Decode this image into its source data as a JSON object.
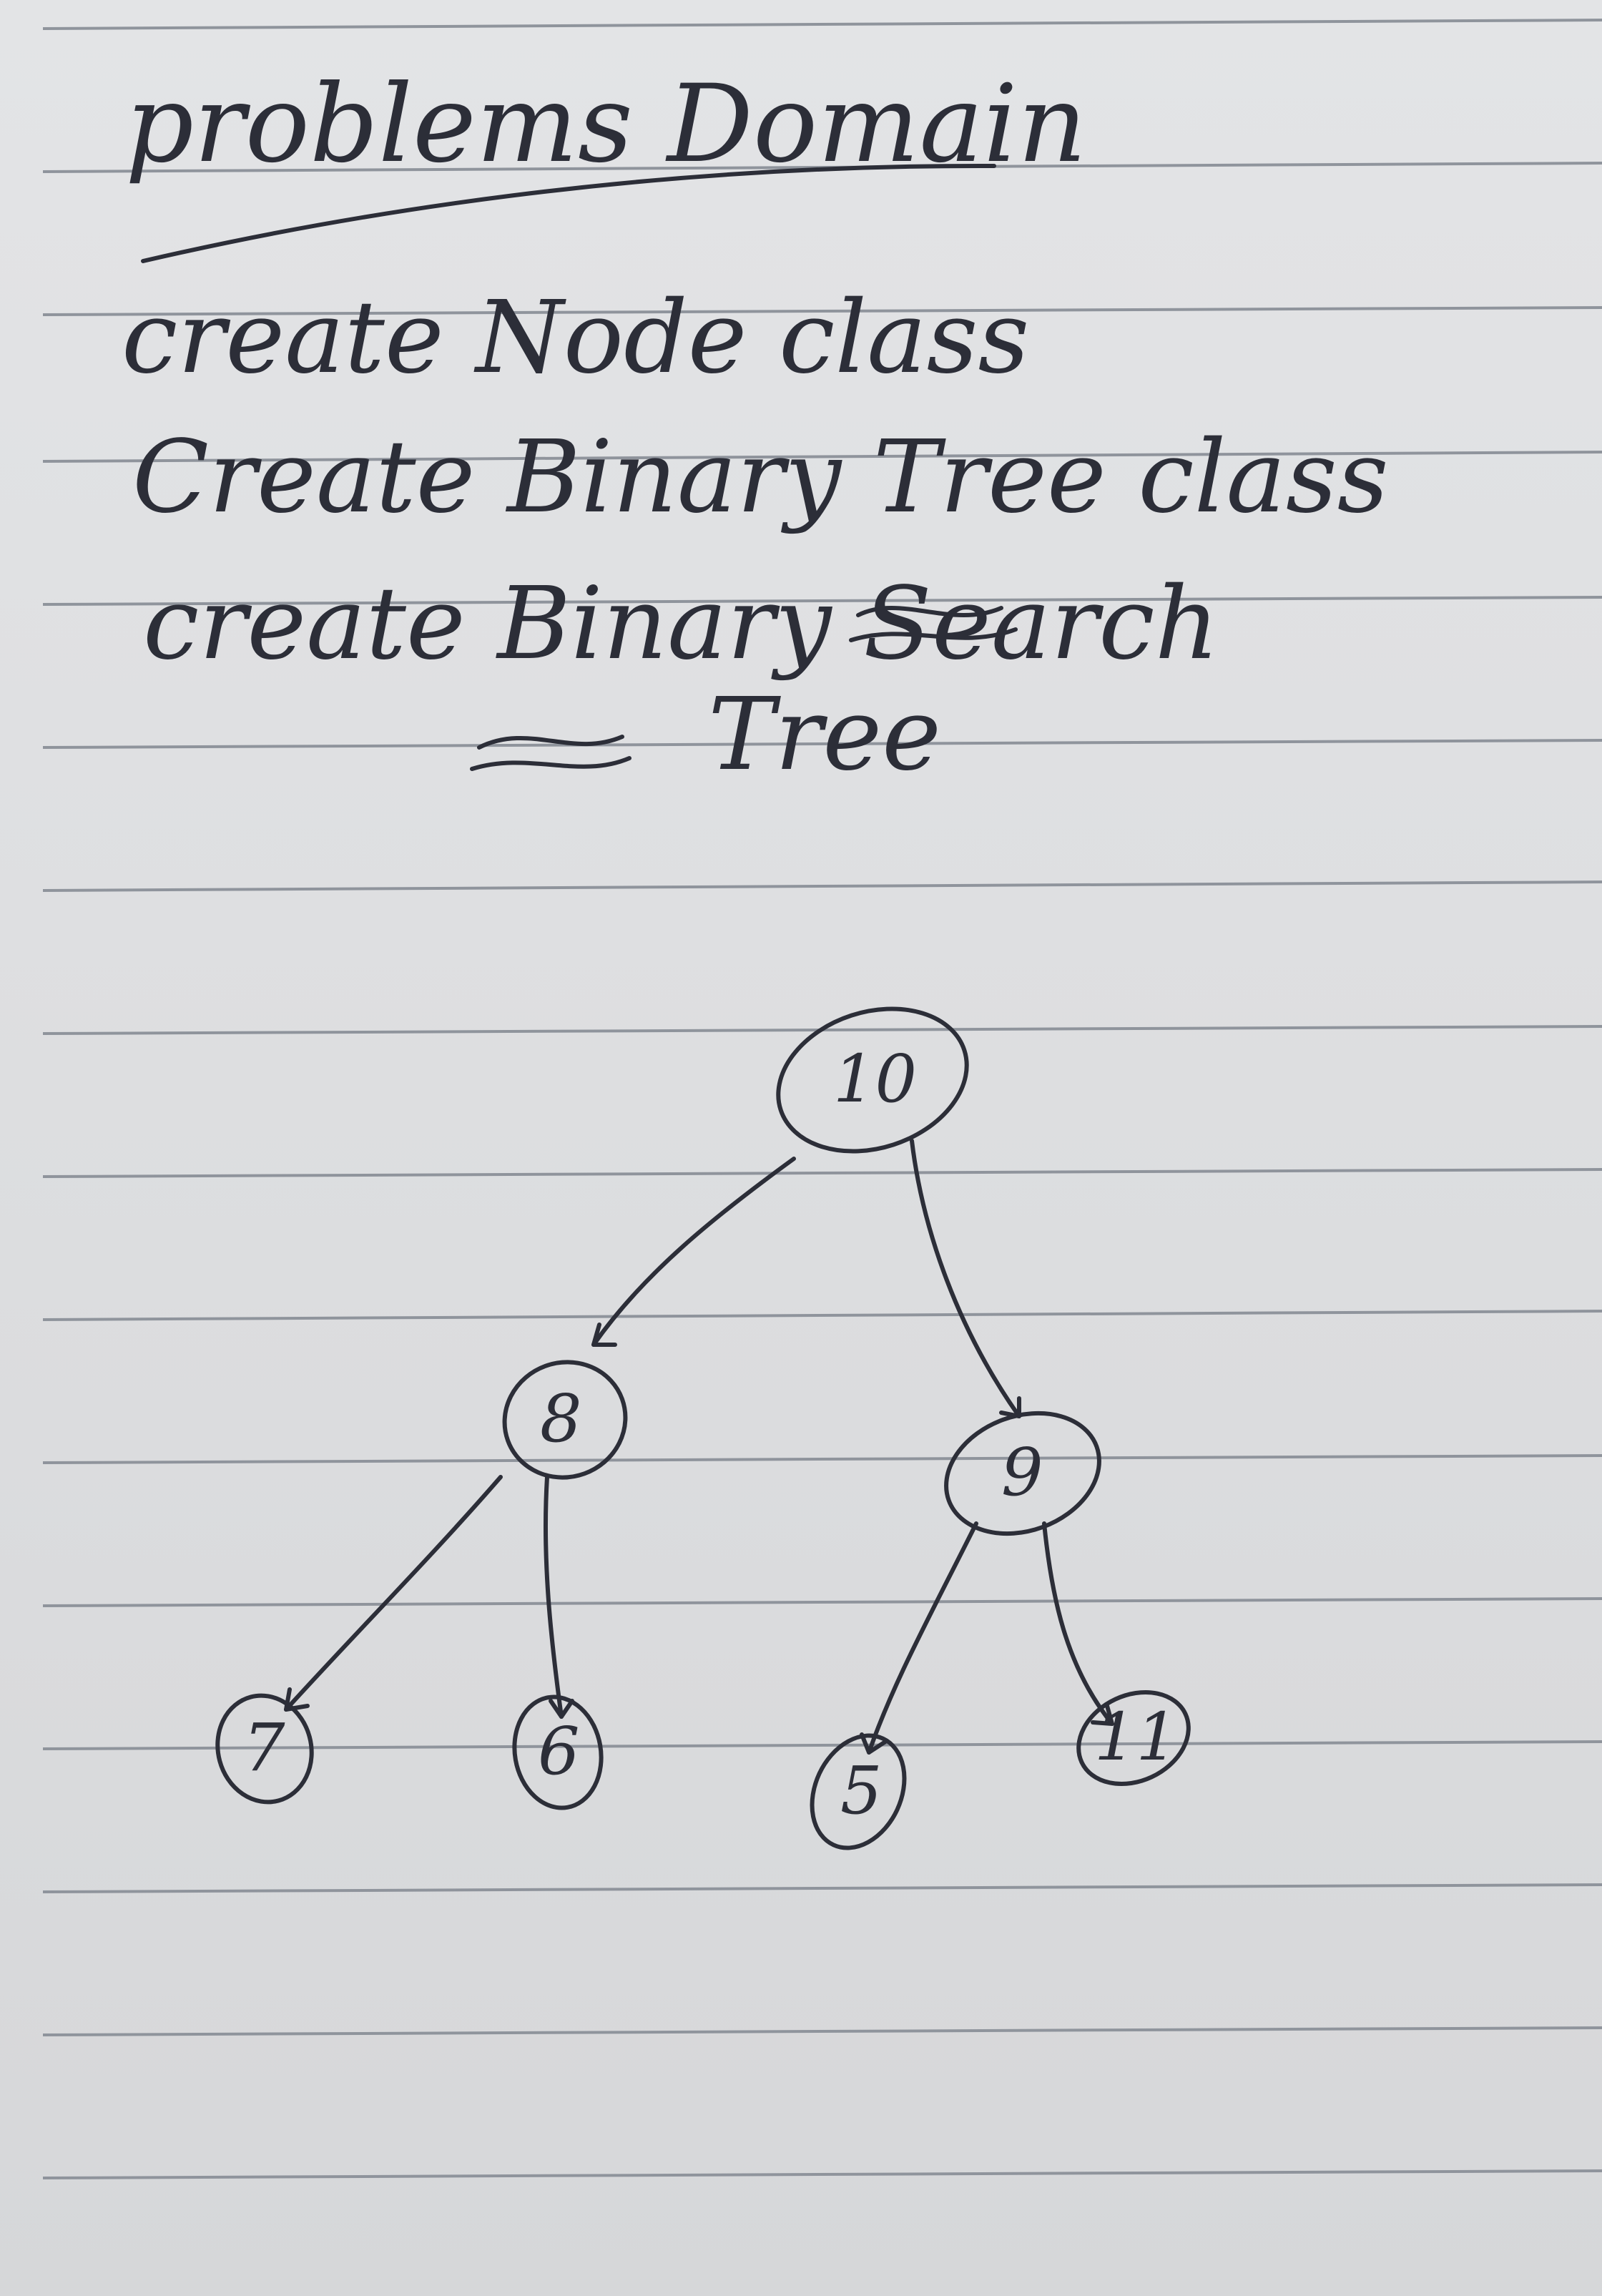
{
  "notes": {
    "heading": "problems Domain",
    "tasks": [
      "create Node class",
      "Create Binary Tree class",
      "create Binary Search",
      "Tree"
    ]
  },
  "tree": {
    "root": "10",
    "level1": [
      "8",
      "9"
    ],
    "leaves": [
      "7",
      "6",
      "5",
      "11"
    ]
  },
  "colors": {
    "ink": "#2c2e38",
    "paper": "#dedfe1",
    "rule": "#8f949c"
  }
}
